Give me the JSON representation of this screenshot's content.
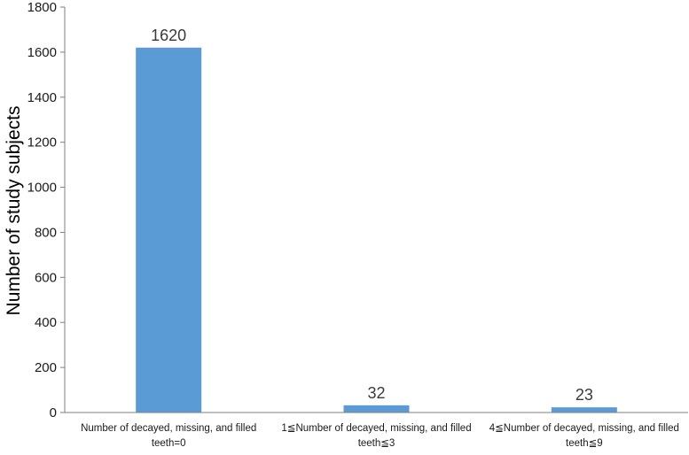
{
  "chart_data": {
    "type": "bar",
    "title": "",
    "xlabel": "",
    "ylabel": "Number of study subjects",
    "ylim": [
      0,
      1800
    ],
    "yticks": [
      0,
      200,
      400,
      600,
      800,
      1000,
      1200,
      1400,
      1600,
      1800
    ],
    "grid": false,
    "legend": "none",
    "bar_color": "#5b9bd5",
    "categories": [
      [
        "Number of decayed, missing, and filled",
        "teeth=0"
      ],
      [
        "1≦Number of decayed, missing, and filled",
        "teeth≦3"
      ],
      [
        "4≦Number of decayed, missing, and filled",
        "teeth≦9"
      ]
    ],
    "values": [
      1620,
      32,
      23
    ],
    "data_labels": [
      "1620",
      "32",
      "23"
    ]
  }
}
